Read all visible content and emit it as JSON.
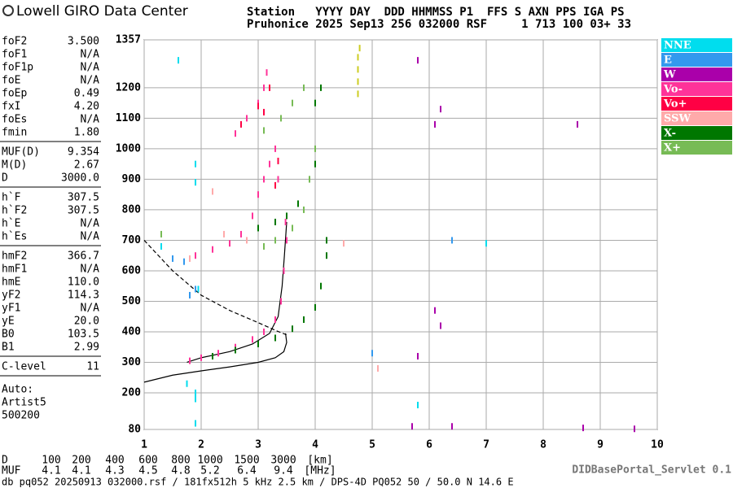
{
  "header": {
    "logo": "Lowell GIRO Data Center",
    "line1": "Station   YYYY DAY  DDD HHMMSS P1  FFS S AXN PPS IGA PS",
    "line2": "Pruhonice 2025 Sep13 256 032000 RSF     1 713 100 03+ 33"
  },
  "params": [
    [
      [
        "foF2",
        "3.500"
      ],
      [
        "foF1",
        "N/A"
      ],
      [
        "foF1p",
        "N/A"
      ],
      [
        "foE",
        "N/A"
      ],
      [
        "foEp",
        "0.49"
      ],
      [
        "fxI",
        "4.20"
      ],
      [
        "foEs",
        "N/A"
      ],
      [
        "fmin",
        "1.80"
      ]
    ],
    [
      [
        "MUF(D)",
        "9.354"
      ],
      [
        "M(D)",
        "2.67"
      ],
      [
        "D",
        "3000.0"
      ]
    ],
    [
      [
        "h`F",
        "307.5"
      ],
      [
        "h`F2",
        "307.5"
      ],
      [
        "h`E",
        "N/A"
      ],
      [
        "h`Es",
        "N/A"
      ]
    ],
    [
      [
        "hmF2",
        "366.7"
      ],
      [
        "hmF1",
        "N/A"
      ],
      [
        "hmE",
        "110.0"
      ],
      [
        "yF2",
        "114.3"
      ],
      [
        "yF1",
        "N/A"
      ],
      [
        "yE",
        "20.0"
      ],
      [
        "B0",
        "103.5"
      ],
      [
        "B1",
        "2.99"
      ]
    ],
    [
      [
        "C-level",
        "11"
      ]
    ]
  ],
  "notes": [
    "Auto:",
    "Artist5",
    "500200"
  ],
  "muf_table": {
    "d_label": "D",
    "d": [
      "100",
      "200",
      "400",
      "600",
      "800",
      "1000",
      "1500",
      "3000",
      "[km]"
    ],
    "muf_label": "MUF",
    "muf": [
      "4.1",
      "4.1",
      "4.3",
      "4.5",
      "4.8",
      "5.2",
      "6.4",
      "9.4",
      "[MHz]"
    ]
  },
  "servlet": "DIDBasePortal_Servlet 0.1",
  "footer": "db pq052 20250913 032000.rsf / 181fx512h 5 kHz 2.5 km / DPS-4D PQ052 50 / 50.0 N 14.6 E",
  "chart_data": {
    "type": "scatter",
    "xlim": [
      1,
      10
    ],
    "xticks": [
      1,
      2,
      3,
      4,
      5,
      6,
      7,
      8,
      9,
      10
    ],
    "ylim": [
      80,
      1357
    ],
    "yticks": [
      80,
      200,
      300,
      400,
      500,
      600,
      700,
      800,
      900,
      1000,
      1100,
      1200,
      1357
    ],
    "grid": true,
    "series": [
      {
        "name": "NNE",
        "color": "#00ddee",
        "x": [
          1.9,
          1.9,
          1.75,
          1.9,
          1.9,
          1.9,
          1.3,
          7.0,
          5.8,
          1.6,
          1.95
        ],
        "y": [
          950,
          890,
          230,
          200,
          180,
          100,
          680,
          690,
          160,
          1290,
          540
        ]
      },
      {
        "name": "E",
        "color": "#3399ee",
        "x": [
          1.5,
          1.7,
          1.9,
          5.0,
          6.4,
          1.8
        ],
        "y": [
          640,
          630,
          540,
          330,
          700,
          520
        ]
      },
      {
        "name": "W",
        "color": "#aa00aa",
        "x": [
          6.2,
          6.1,
          5.8,
          8.6,
          6.4,
          5.7,
          6.1,
          6.2,
          8.7,
          9.6,
          5.8
        ],
        "y": [
          1130,
          1080,
          1290,
          1080,
          90,
          90,
          470,
          420,
          85,
          82,
          320
        ]
      },
      {
        "name": "Vo-",
        "color": "#ff3399",
        "x": [
          1.8,
          2.0,
          2.3,
          2.6,
          2.9,
          3.1,
          3.3,
          3.4,
          3.45,
          3.5,
          3.48,
          1.9,
          2.2,
          2.5,
          2.7,
          2.9,
          3.0,
          3.1,
          3.2,
          3.3,
          3.35,
          2.6,
          2.8,
          3.0,
          3.1,
          3.15
        ],
        "y": [
          305,
          315,
          330,
          350,
          375,
          400,
          440,
          500,
          600,
          700,
          760,
          650,
          670,
          690,
          720,
          780,
          850,
          900,
          950,
          1000,
          900,
          1050,
          1100,
          1150,
          1200,
          1250
        ]
      },
      {
        "name": "Vo+",
        "color": "#ff0044",
        "x": [
          3.2,
          3.1,
          3.35,
          2.7,
          3.0,
          3.3
        ],
        "y": [
          1200,
          1120,
          960,
          1080,
          1140,
          880
        ]
      },
      {
        "name": "SSW",
        "color": "#ffaaaa",
        "x": [
          1.8,
          2.8,
          2.4,
          4.5,
          5.1,
          2.2
        ],
        "y": [
          640,
          700,
          720,
          690,
          280,
          860
        ]
      },
      {
        "name": "X-",
        "color": "#007700",
        "x": [
          2.2,
          2.6,
          3.0,
          3.3,
          3.6,
          3.8,
          4.0,
          4.1,
          4.2,
          4.2,
          3.0,
          3.3,
          3.5,
          3.7,
          3.9,
          4.0,
          4.0,
          4.1
        ],
        "y": [
          320,
          340,
          360,
          380,
          410,
          440,
          480,
          550,
          650,
          700,
          740,
          760,
          780,
          820,
          900,
          950,
          1150,
          1200
        ]
      },
      {
        "name": "X+",
        "color": "#77bb55",
        "x": [
          3.1,
          3.3,
          3.6,
          3.8,
          3.9,
          4.0,
          3.1,
          3.4,
          3.6,
          3.8,
          1.3
        ],
        "y": [
          680,
          700,
          740,
          800,
          900,
          1000,
          1060,
          1100,
          1150,
          1200,
          720
        ]
      },
      {
        "color": "#cccc22",
        "x": [
          4.75,
          4.75,
          4.75,
          4.75,
          4.78
        ],
        "y": [
          1180,
          1220,
          1260,
          1300,
          1330
        ]
      }
    ],
    "lines": [
      {
        "style": "solid",
        "x": [
          1.0,
          1.5,
          2.0,
          2.5,
          3.0,
          3.3,
          3.45,
          3.5,
          3.48
        ],
        "y": [
          235,
          258,
          272,
          285,
          300,
          315,
          335,
          365,
          395
        ]
      },
      {
        "style": "solid",
        "x": [
          1.75,
          2.0,
          2.5,
          2.9,
          3.2,
          3.35,
          3.42,
          3.46,
          3.5
        ],
        "y": [
          300,
          315,
          335,
          360,
          395,
          450,
          550,
          650,
          760
        ]
      },
      {
        "style": "dashed",
        "x": [
          1.0,
          1.5,
          2.0,
          2.5,
          3.0,
          3.3,
          3.5
        ],
        "y": [
          700,
          600,
          520,
          470,
          430,
          405,
          390
        ]
      }
    ]
  }
}
